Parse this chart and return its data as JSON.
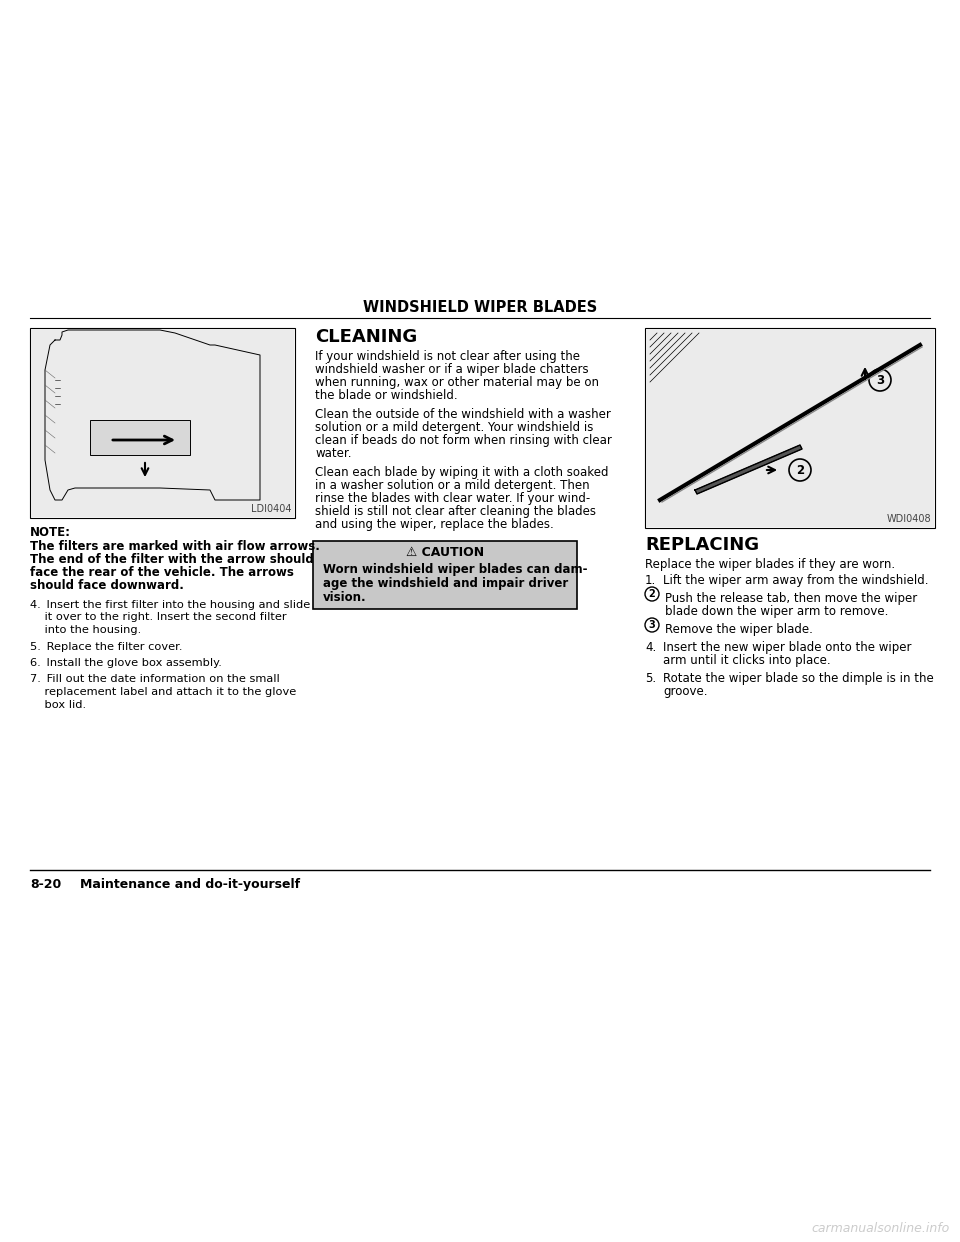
{
  "page_title": "WINDSHIELD WIPER BLADES",
  "page_number": "8-20",
  "page_section": "Maintenance and do-it-yourself",
  "background_color": "#ffffff",
  "watermark_text": "carmanualsonline.info",
  "watermark_color": "#cccccc",
  "left_image_label": "LDI0404",
  "right_image_label": "WDI0408",
  "note_label": "NOTE:",
  "note_bold_lines": [
    "The filters are marked with air flow arrows.",
    "The end of the filter with the arrow should",
    "face the rear of the vehicle. The arrows",
    "should face downward."
  ],
  "left_steps": [
    {
      "indent": true,
      "text": "4. Insert the first filter into the housing and slide\n    it over to the right. Insert the second filter\n    into the housing."
    },
    {
      "indent": true,
      "text": "5. Replace the filter cover."
    },
    {
      "indent": true,
      "text": "6. Install the glove box assembly."
    },
    {
      "indent": true,
      "text": "7. Fill out the date information on the small\n    replacement label and attach it to the glove\n    box lid."
    }
  ],
  "cleaning_title": "CLEANING",
  "cleaning_paragraphs": [
    "If your windshield is not clear after using the\nwindshield washer or if a wiper blade chatters\nwhen running, wax or other material may be on\nthe blade or windshield.",
    "Clean the outside of the windshield with a washer\nsolution or a mild detergent. Your windshield is\nclean if beads do not form when rinsing with clear\nwater.",
    "Clean each blade by wiping it with a cloth soaked\nin a washer solution or a mild detergent. Then\nrinse the blades with clear water. If your wind-\nshield is still not clear after cleaning the blades\nand using the wiper, replace the blades."
  ],
  "caution_title": "⚠ CAUTION",
  "caution_text_bold": "Worn windshield wiper blades can dam-\nage the windshield and impair driver\nvision.",
  "caution_bg": "#c8c8c8",
  "replacing_title": "REPLACING",
  "replacing_intro": "Replace the wiper blades if they are worn.",
  "replacing_steps": [
    {
      "num": "1.",
      "circled": false,
      "text": "Lift the wiper arm away from the windshield."
    },
    {
      "num": "2",
      "circled": true,
      "text": "Push the release tab, then move the wiper\nblade down the wiper arm to remove."
    },
    {
      "num": "3",
      "circled": true,
      "text": "Remove the wiper blade."
    },
    {
      "num": "4.",
      "circled": false,
      "text": "Insert the new wiper blade onto the wiper\narm until it clicks into place."
    },
    {
      "num": "5.",
      "circled": false,
      "text": "Rotate the wiper blade so the dimple is in the\ngroove."
    }
  ]
}
